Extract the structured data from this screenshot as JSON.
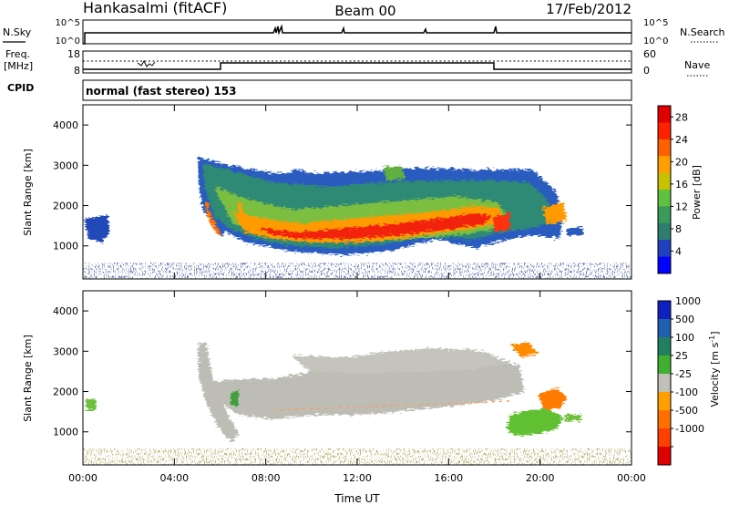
{
  "header": {
    "station": "Hankasalmi (fitACF)",
    "beam": "Beam 00",
    "date": "17/Feb/2012"
  },
  "strip_panels": {
    "nsky_label": "N.Sky",
    "nsky_ticks": [
      "10^5",
      "10^0"
    ],
    "nsearch_label": "N.Search",
    "nsearch_ticks": [
      "10^5",
      "10^0"
    ],
    "freq_label_line1": "Freq.",
    "freq_label_line2": "[MHz]",
    "freq_ticks": [
      "18",
      "8"
    ],
    "nave_label": "Nave",
    "nave_ticks": [
      "60",
      "0"
    ],
    "cpid_label": "CPID",
    "cpid_text": "normal (fast stereo) 153"
  },
  "colors": {
    "power_scale": [
      "#0000ff",
      "#2040c0",
      "#2e7d6e",
      "#3a9a5a",
      "#60c040",
      "#c8c000",
      "#ffa000",
      "#ff6000",
      "#ff2000",
      "#e00000"
    ],
    "velocity_scale": [
      "#1020c0",
      "#2060b0",
      "#208060",
      "#40b030",
      "#c0c0b8",
      "#ffa000",
      "#ff7000",
      "#ff4000",
      "#e00000"
    ],
    "ground_scatter": "#bdbdb5"
  },
  "chart_data": [
    {
      "type": "heatmap",
      "name": "power",
      "xlabel": "",
      "ylabel": "Slant Range [km]",
      "x_ticks": [
        "00:00",
        "04:00",
        "08:00",
        "12:00",
        "16:00",
        "20:00",
        "00:00"
      ],
      "x_range_hours": [
        0,
        24
      ],
      "y_ticks": [
        1000,
        2000,
        3000,
        4000
      ],
      "ylim": [
        180,
        4500
      ],
      "colorbar_label": "Power [dB]",
      "colorbar_ticks": [
        4,
        8,
        12,
        16,
        20,
        24,
        28
      ],
      "colorbar_range": [
        0,
        30
      ],
      "features": [
        {
          "t0": 5.0,
          "t1": 21.0,
          "range_center_km": 1300,
          "value_db": 26
        },
        {
          "t0": 5.0,
          "t1": 20.0,
          "range_center_km": 2300,
          "value_db": 10
        }
      ]
    },
    {
      "type": "heatmap",
      "name": "velocity",
      "xlabel": "Time UT",
      "ylabel": "Slant Range [km]",
      "x_ticks": [
        "00:00",
        "04:00",
        "08:00",
        "12:00",
        "16:00",
        "20:00",
        "00:00"
      ],
      "x_range_hours": [
        0,
        24
      ],
      "y_ticks": [
        1000,
        2000,
        3000,
        4000
      ],
      "ylim": [
        180,
        4500
      ],
      "colorbar_label": "Velocity [m s",
      "colorbar_unit_sup": "-1",
      "colorbar_unit_close": "]",
      "colorbar_ticks": [
        "1000",
        "500",
        "100",
        "25",
        "-25",
        "-100",
        "-500",
        "-1000"
      ]
    }
  ]
}
